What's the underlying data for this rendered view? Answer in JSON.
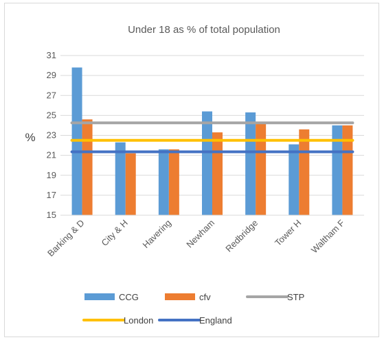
{
  "chart_data": {
    "type": "bar",
    "title": "Under 18 as % of total population",
    "ylabel": "%",
    "xlabel": "",
    "ylim": [
      15,
      31
    ],
    "yticks": [
      15,
      17,
      19,
      21,
      23,
      25,
      27,
      29,
      31
    ],
    "grid": true,
    "legend_position": "bottom",
    "categories": [
      "Barking & D",
      "City & H",
      "Havering",
      "Newham",
      "Redbridge",
      "Tower H",
      "Waltham F"
    ],
    "series": [
      {
        "name": "CCG",
        "kind": "bar",
        "color": "#5b9bd5",
        "values": [
          29.8,
          22.3,
          21.6,
          25.4,
          25.3,
          22.1,
          24.0
        ]
      },
      {
        "name": "cfv",
        "kind": "bar",
        "color": "#ed7d31",
        "values": [
          24.6,
          21.2,
          21.6,
          23.3,
          24.3,
          23.6,
          24.0
        ]
      },
      {
        "name": "STP",
        "kind": "line",
        "color": "#a5a5a5",
        "value": 24.25
      },
      {
        "name": "London",
        "kind": "line",
        "color": "#ffc000",
        "value": 22.5
      },
      {
        "name": "England",
        "kind": "line",
        "color": "#4472c4",
        "value": 21.35
      }
    ]
  }
}
